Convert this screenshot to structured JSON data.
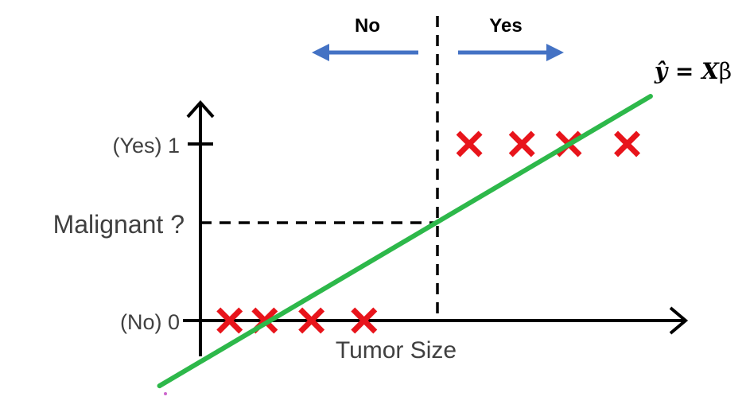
{
  "chart_data": {
    "type": "scatter",
    "xlabel": "Tumor Size",
    "ylabel": "Malignant ?",
    "y_ticks": [
      {
        "value": 0,
        "label": "(No) 0"
      },
      {
        "value": 1,
        "label": "(Yes) 1"
      }
    ],
    "series": [
      {
        "marker": "x",
        "color": "#e8141b",
        "points": [
          {
            "x": 0.5,
            "y": 0
          },
          {
            "x": 1.1,
            "y": 0
          },
          {
            "x": 1.9,
            "y": 0
          },
          {
            "x": 2.8,
            "y": 0
          },
          {
            "x": 4.6,
            "y": 1
          },
          {
            "x": 5.5,
            "y": 1
          },
          {
            "x": 6.3,
            "y": 1
          },
          {
            "x": 7.3,
            "y": 1
          }
        ]
      }
    ],
    "fit_line": {
      "label_prefix": "ŷ = ",
      "label_X": "X",
      "label_beta": "β",
      "color": "#2db84a",
      "points": [
        {
          "x": -0.7,
          "y": -0.37
        },
        {
          "x": 7.7,
          "y": 1.27
        }
      ]
    },
    "threshold": {
      "x": 3.7,
      "y": 0.5,
      "style": "dashed",
      "color": "#000000"
    },
    "annotations": {
      "left_label": "No",
      "right_label": "Yes",
      "arrow_color": "#4472c4"
    },
    "xlim": [
      -0.7,
      7.7
    ],
    "ylim": [
      -0.37,
      1.27
    ],
    "grid": false,
    "legend": "none"
  }
}
